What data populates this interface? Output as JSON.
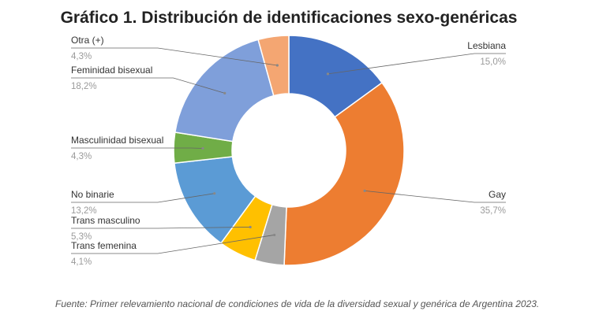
{
  "chart_data": {
    "type": "pie",
    "variant": "donut",
    "title": "Gráfico 1. Distribución de identificaciones sexo-genéricas",
    "slices": [
      {
        "label": "Lesbiana",
        "value": 15.0,
        "value_label": "15,0%",
        "color": "#4472C4"
      },
      {
        "label": "Gay",
        "value": 35.7,
        "value_label": "35,7%",
        "color": "#ED7D31"
      },
      {
        "label": "Trans femenina",
        "value": 4.1,
        "value_label": "4,1%",
        "color": "#A5A5A5"
      },
      {
        "label": "Trans masculino",
        "value": 5.3,
        "value_label": "5,3%",
        "color": "#FFC000"
      },
      {
        "label": "No binarie",
        "value": 13.2,
        "value_label": "13,2%",
        "color": "#5B9BD5"
      },
      {
        "label": "Masculinidad bisexual",
        "value": 4.3,
        "value_label": "4,3%",
        "color": "#70AD47"
      },
      {
        "label": "Feminidad bisexual",
        "value": 18.2,
        "value_label": "18,2%",
        "color": "#7F9FDA"
      },
      {
        "label": "Otra (+)",
        "value": 4.3,
        "value_label": "4,3%",
        "color": "#F4A672"
      }
    ],
    "legend": "callout labels",
    "source_note": "Fuente: Primer relevamiento nacional de condiciones de vida de la diversidad sexual y genérica de Argentina 2023."
  }
}
